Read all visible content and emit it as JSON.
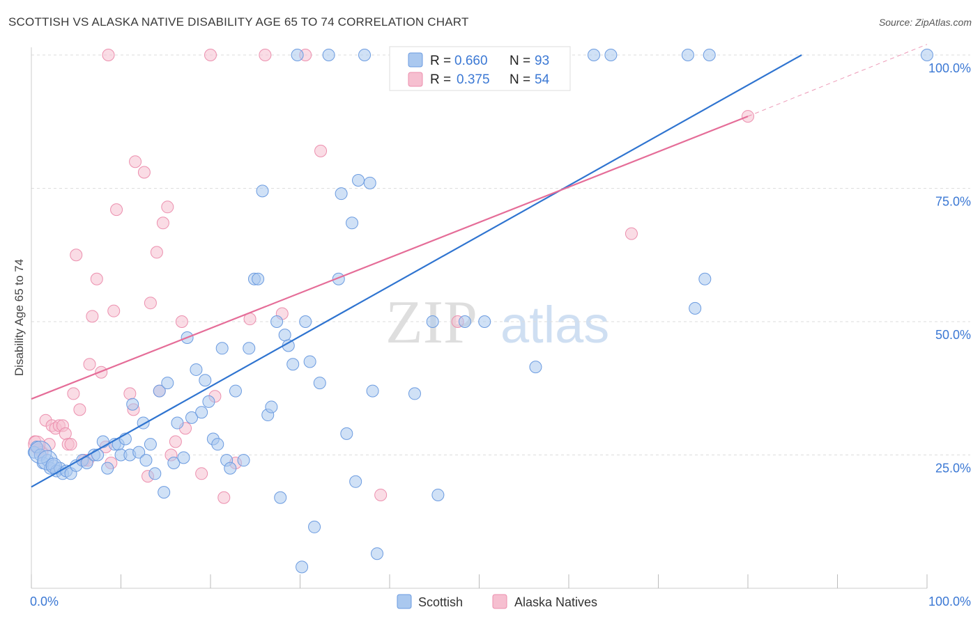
{
  "title": "SCOTTISH VS ALASKA NATIVE DISABILITY AGE 65 TO 74 CORRELATION CHART",
  "source": "Source: ZipAtlas.com",
  "watermark": {
    "zip": "ZIP",
    "atlas": "atlas"
  },
  "legend_top": [
    {
      "r_label": "R =",
      "r_value": "0.660",
      "n_label": "N =",
      "n_value": "93"
    },
    {
      "r_label": "R =",
      "r_value": "0.375",
      "n_label": "N =",
      "n_value": "54"
    }
  ],
  "colors": {
    "blue_fill": "#aac8ef",
    "blue_stroke": "#6b9be0",
    "blue_line": "#2f74d0",
    "pink_fill": "#f6bfd0",
    "pink_stroke": "#ec8fae",
    "pink_line": "#e56d98",
    "value_text": "#3b78d4",
    "grid": "#dddddd"
  },
  "chart_data": {
    "type": "scatter",
    "title": "SCOTTISH VS ALASKA NATIVE DISABILITY AGE 65 TO 74 CORRELATION CHART",
    "xlabel": "",
    "ylabel": "Disability Age 65 to 74",
    "xlim": [
      0,
      100
    ],
    "ylim": [
      0,
      100
    ],
    "x_tick_labels": [
      "0.0%",
      "100.0%"
    ],
    "y_tick_labels": [
      "25.0%",
      "50.0%",
      "75.0%",
      "100.0%"
    ],
    "y_ticks": [
      25,
      50,
      75,
      100
    ],
    "grid": true,
    "legend_position": "bottom",
    "series": [
      {
        "name": "Scottish",
        "r": 0.66,
        "n": 93,
        "trend": {
          "x1": 0,
          "y1": 19,
          "x2": 86,
          "y2": 100,
          "dashed_extension": false
        },
        "points": [
          [
            0.3,
            25.5
          ],
          [
            0.6,
            26.5
          ],
          [
            1,
            25
          ],
          [
            1.3,
            23.5
          ],
          [
            1.8,
            24
          ],
          [
            2.1,
            22.5
          ],
          [
            2.5,
            23
          ],
          [
            2.8,
            22
          ],
          [
            3.2,
            22.5
          ],
          [
            3.5,
            21.5
          ],
          [
            3.9,
            22
          ],
          [
            4.4,
            21.5
          ],
          [
            5,
            23
          ],
          [
            5.7,
            24
          ],
          [
            6.2,
            23.5
          ],
          [
            7,
            25
          ],
          [
            7.4,
            25
          ],
          [
            8,
            27.5
          ],
          [
            8.5,
            22.5
          ],
          [
            9.3,
            27
          ],
          [
            9.7,
            27
          ],
          [
            10,
            25
          ],
          [
            10.5,
            28
          ],
          [
            11,
            25
          ],
          [
            11.3,
            34.5
          ],
          [
            12,
            25.5
          ],
          [
            12.5,
            31
          ],
          [
            12.8,
            24
          ],
          [
            13.3,
            27
          ],
          [
            13.8,
            21.5
          ],
          [
            14.3,
            37
          ],
          [
            14.8,
            18
          ],
          [
            15.2,
            38.5
          ],
          [
            15.9,
            23.5
          ],
          [
            16.3,
            31
          ],
          [
            17,
            24.5
          ],
          [
            17.4,
            47
          ],
          [
            17.9,
            32
          ],
          [
            18.4,
            41
          ],
          [
            19,
            33
          ],
          [
            19.4,
            39
          ],
          [
            19.8,
            35
          ],
          [
            20.3,
            28
          ],
          [
            20.8,
            27
          ],
          [
            21.3,
            45
          ],
          [
            21.8,
            24
          ],
          [
            22.2,
            22.5
          ],
          [
            22.8,
            37
          ],
          [
            23.7,
            24
          ],
          [
            24.3,
            45
          ],
          [
            24.9,
            58
          ],
          [
            25.3,
            58
          ],
          [
            25.8,
            74.5
          ],
          [
            26.4,
            32.5
          ],
          [
            26.8,
            34
          ],
          [
            27.4,
            50
          ],
          [
            27.8,
            17
          ],
          [
            28.3,
            47.5
          ],
          [
            28.7,
            45.5
          ],
          [
            29.2,
            42
          ],
          [
            29.7,
            100
          ],
          [
            30.2,
            4
          ],
          [
            30.6,
            50
          ],
          [
            31.1,
            42.5
          ],
          [
            31.6,
            11.5
          ],
          [
            32.2,
            38.5
          ],
          [
            33.2,
            100
          ],
          [
            34.3,
            58
          ],
          [
            34.6,
            74
          ],
          [
            35.2,
            29
          ],
          [
            35.8,
            68.5
          ],
          [
            36.2,
            20
          ],
          [
            36.5,
            76.5
          ],
          [
            37.2,
            100
          ],
          [
            37.8,
            76
          ],
          [
            38.1,
            37
          ],
          [
            38.6,
            6.5
          ],
          [
            42.8,
            36.5
          ],
          [
            44.3,
            100
          ],
          [
            44.8,
            50
          ],
          [
            45.4,
            17.5
          ],
          [
            47.8,
            100
          ],
          [
            48.4,
            50
          ],
          [
            50.6,
            50
          ],
          [
            51.6,
            100
          ],
          [
            56.3,
            41.5
          ],
          [
            62.8,
            100
          ],
          [
            64.7,
            100
          ],
          [
            73.3,
            100
          ],
          [
            75.7,
            100
          ],
          [
            74.1,
            52.5
          ],
          [
            75.2,
            58
          ],
          [
            100,
            100
          ]
        ]
      },
      {
        "name": "Alaska Natives",
        "r": 0.375,
        "n": 54,
        "trend": {
          "x1": 0,
          "y1": 35.5,
          "x2": 80,
          "y2": 88.5,
          "dashed_to": [
            100,
            102
          ]
        },
        "points": [
          [
            0.4,
            27.5
          ],
          [
            0.8,
            26
          ],
          [
            1.2,
            25.5
          ],
          [
            1.6,
            31.5
          ],
          [
            2,
            27
          ],
          [
            2.3,
            30.5
          ],
          [
            2.7,
            30
          ],
          [
            3.1,
            30.5
          ],
          [
            3.5,
            30.5
          ],
          [
            3.8,
            29
          ],
          [
            4.1,
            27
          ],
          [
            4.4,
            27
          ],
          [
            4.7,
            36.5
          ],
          [
            5,
            62.5
          ],
          [
            5.4,
            33.5
          ],
          [
            5.9,
            24
          ],
          [
            6.3,
            24
          ],
          [
            6.5,
            42
          ],
          [
            6.8,
            51
          ],
          [
            7.3,
            58
          ],
          [
            7.8,
            40.5
          ],
          [
            8.3,
            26.5
          ],
          [
            8.6,
            100
          ],
          [
            8.9,
            23.5
          ],
          [
            9.2,
            52
          ],
          [
            9.5,
            71
          ],
          [
            11,
            36.5
          ],
          [
            11.4,
            33.5
          ],
          [
            11.6,
            80
          ],
          [
            12.6,
            78
          ],
          [
            13,
            21
          ],
          [
            13.3,
            53.5
          ],
          [
            14,
            63
          ],
          [
            14.3,
            37
          ],
          [
            14.7,
            68.5
          ],
          [
            15.2,
            71.5
          ],
          [
            15.6,
            25
          ],
          [
            16.1,
            27.5
          ],
          [
            16.8,
            50
          ],
          [
            17.2,
            30
          ],
          [
            19,
            21.5
          ],
          [
            20,
            100
          ],
          [
            20.5,
            36
          ],
          [
            21.5,
            17
          ],
          [
            22.8,
            23.5
          ],
          [
            24.4,
            50.5
          ],
          [
            26.1,
            100
          ],
          [
            28,
            51.5
          ],
          [
            30.6,
            100
          ],
          [
            32.3,
            82
          ],
          [
            39,
            17.5
          ],
          [
            47.6,
            50
          ],
          [
            67,
            66.5
          ],
          [
            80,
            88.5
          ]
        ]
      }
    ]
  }
}
